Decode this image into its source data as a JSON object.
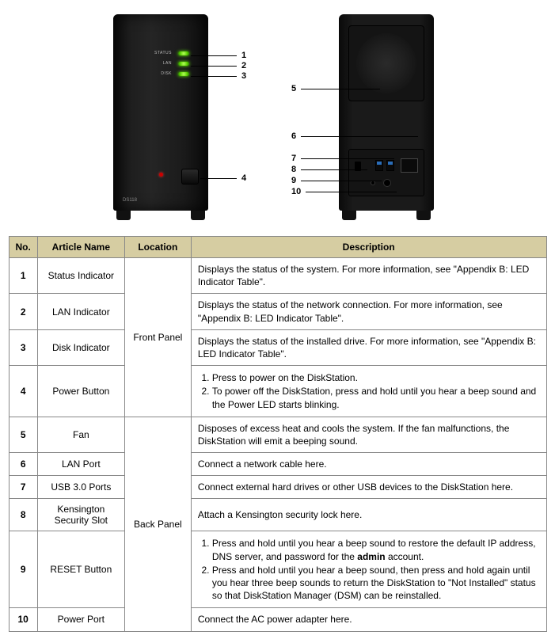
{
  "device": {
    "model": "DS118",
    "front_led_labels": [
      "STATUS",
      "LAN",
      "DISK"
    ],
    "front_callouts": [
      "1",
      "2",
      "3",
      "4"
    ],
    "back_callouts": [
      "5",
      "6",
      "7",
      "8",
      "9",
      "10"
    ],
    "colors": {
      "led_glow": "#6f0",
      "power_dot": "#c00",
      "usb_inner": "#2a6db9",
      "table_header_bg": "#d6cda2",
      "border": "#888888"
    }
  },
  "table": {
    "headers": {
      "no": "No.",
      "name": "Article Name",
      "loc": "Location",
      "desc": "Description"
    },
    "locations": {
      "front": "Front Panel",
      "back": "Back Panel"
    },
    "rows": [
      {
        "no": "1",
        "name": "Status Indicator",
        "loc": "front",
        "desc_text": "Displays the status of the system. For more information, see \"Appendix B: LED Indicator Table\"."
      },
      {
        "no": "2",
        "name": "LAN Indicator",
        "loc": "front",
        "desc_text": "Displays the status of the network connection. For more information, see \"Appendix B: LED Indicator Table\"."
      },
      {
        "no": "3",
        "name": "Disk Indicator",
        "loc": "front",
        "desc_text": "Displays the status of the installed drive. For more information, see \"Appendix B: LED Indicator Table\"."
      },
      {
        "no": "4",
        "name": "Power Button",
        "loc": "front",
        "desc_list": [
          "Press to power on the DiskStation.",
          "To power off the DiskStation, press and hold until you hear a beep sound and the Power LED starts blinking."
        ]
      },
      {
        "no": "5",
        "name": "Fan",
        "loc": "back",
        "desc_text": "Disposes of excess heat and cools the system. If the fan malfunctions, the DiskStation will emit a beeping sound."
      },
      {
        "no": "6",
        "name": "LAN Port",
        "loc": "back",
        "desc_text": "Connect a network cable here."
      },
      {
        "no": "7",
        "name": "USB 3.0 Ports",
        "loc": "back",
        "desc_text": "Connect external hard drives or other USB devices to the DiskStation here."
      },
      {
        "no": "8",
        "name": "Kensington Security Slot",
        "loc": "back",
        "desc_text": "Attach a Kensington security lock here."
      },
      {
        "no": "9",
        "name": "RESET Button",
        "loc": "back",
        "desc_list": [
          "Press and hold until you hear a beep sound to restore the default IP address, DNS server, and password for the <b>admin</b> account.",
          "Press and hold until you hear a beep sound, then press and hold again until you hear three beep sounds to return the DiskStation to \"Not Installed\" status so that DiskStation Manager (DSM) can be reinstalled."
        ]
      },
      {
        "no": "10",
        "name": "Power Port",
        "loc": "back",
        "desc_text": "Connect the AC power adapter here."
      }
    ]
  }
}
